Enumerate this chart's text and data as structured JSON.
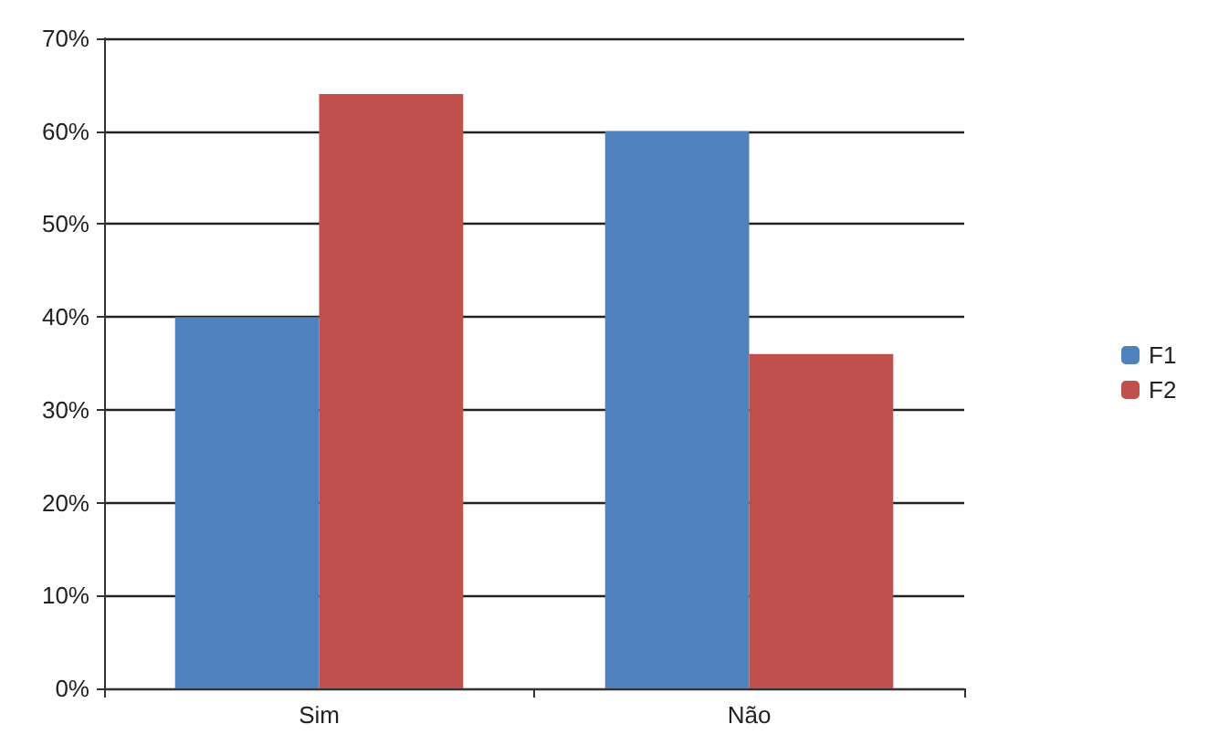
{
  "chart_data": {
    "type": "bar",
    "categories": [
      "Sim",
      "Não"
    ],
    "series": [
      {
        "name": "F1",
        "color": "#4f81bd",
        "values": [
          40,
          60
        ]
      },
      {
        "name": "F2",
        "color": "#c0504d",
        "values": [
          64,
          36
        ]
      }
    ],
    "ylim": [
      0,
      70
    ],
    "yticks": [
      {
        "value": 0,
        "label": "0%"
      },
      {
        "value": 10,
        "label": "10%"
      },
      {
        "value": 20,
        "label": "20%"
      },
      {
        "value": 30,
        "label": "30%"
      },
      {
        "value": 40,
        "label": "40%"
      },
      {
        "value": 50,
        "label": "50%"
      },
      {
        "value": 60,
        "label": "60%"
      },
      {
        "value": 70,
        "label": "70%"
      }
    ],
    "grid": "y",
    "legend": "right"
  }
}
